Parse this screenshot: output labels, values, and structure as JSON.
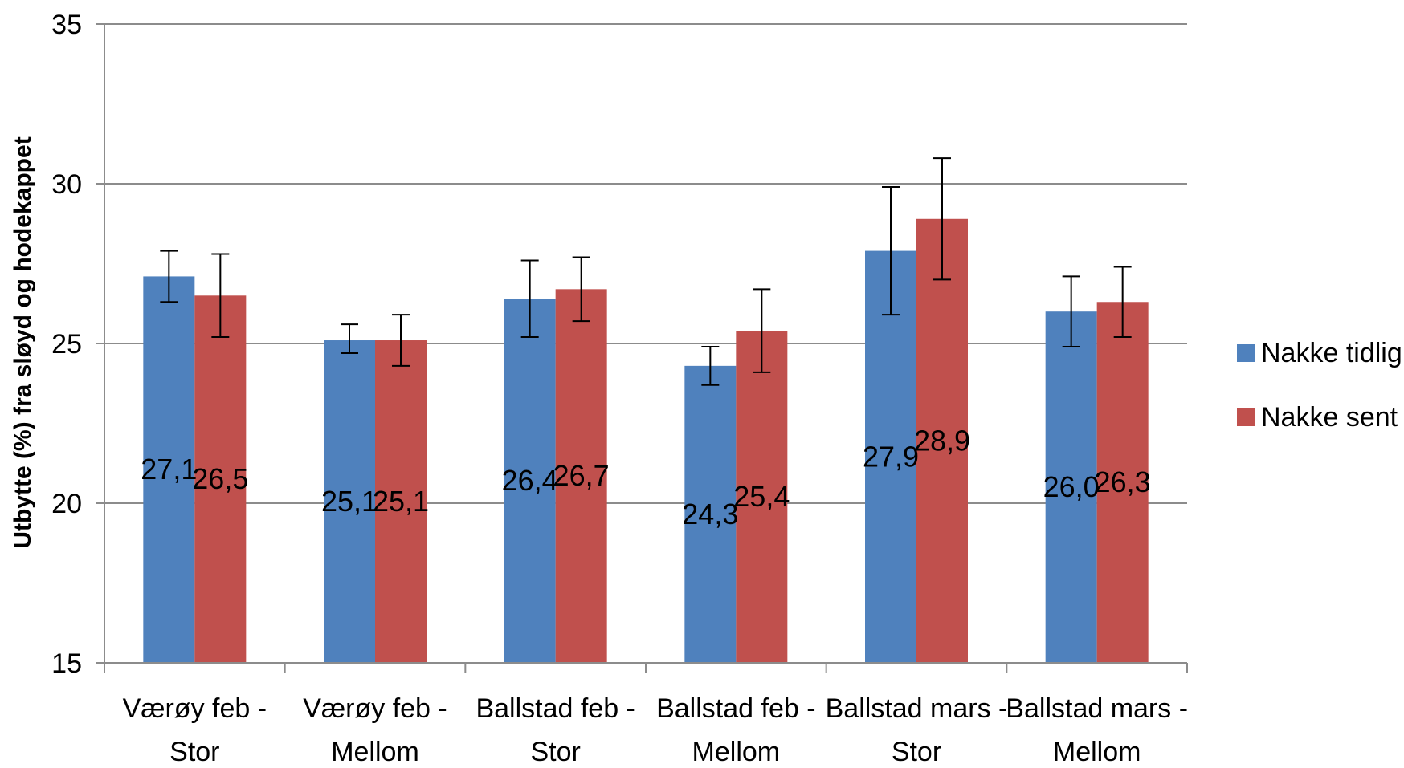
{
  "chart_data": {
    "type": "bar",
    "title": "",
    "xlabel": "",
    "ylabel": "Utbytte (%) fra sløyd og hodekappet",
    "ylim": [
      15,
      35
    ],
    "yticks": [
      15,
      20,
      25,
      30,
      35
    ],
    "grid": true,
    "legend_position": "right",
    "categories": [
      [
        "Værøy feb -",
        "Stor"
      ],
      [
        "Værøy feb -",
        "Mellom"
      ],
      [
        "Ballstad feb -",
        "Stor"
      ],
      [
        "Ballstad feb -",
        "Mellom"
      ],
      [
        "Ballstad mars -",
        "Stor"
      ],
      [
        "Ballstad mars -",
        "Mellom"
      ]
    ],
    "series": [
      {
        "name": "Nakke tidlig",
        "color": "#4F81BD",
        "values": [
          27.1,
          25.1,
          26.4,
          24.3,
          27.9,
          26.0
        ],
        "labels": [
          "27,1",
          "25,1",
          "26,4",
          "24,3",
          "27,9",
          "26,0"
        ],
        "error_low": [
          26.3,
          24.7,
          25.2,
          23.7,
          25.9,
          24.9
        ],
        "error_high": [
          27.9,
          25.6,
          27.6,
          24.9,
          29.9,
          27.1
        ]
      },
      {
        "name": "Nakke sent",
        "color": "#C0504D",
        "values": [
          26.5,
          25.1,
          26.7,
          25.4,
          28.9,
          26.3
        ],
        "labels": [
          "26,5",
          "25,1",
          "26,7",
          "25,4",
          "28,9",
          "26,3"
        ],
        "error_low": [
          25.2,
          24.3,
          25.7,
          24.1,
          27.0,
          25.2
        ],
        "error_high": [
          27.8,
          25.9,
          27.7,
          26.7,
          30.8,
          27.4
        ]
      }
    ]
  }
}
